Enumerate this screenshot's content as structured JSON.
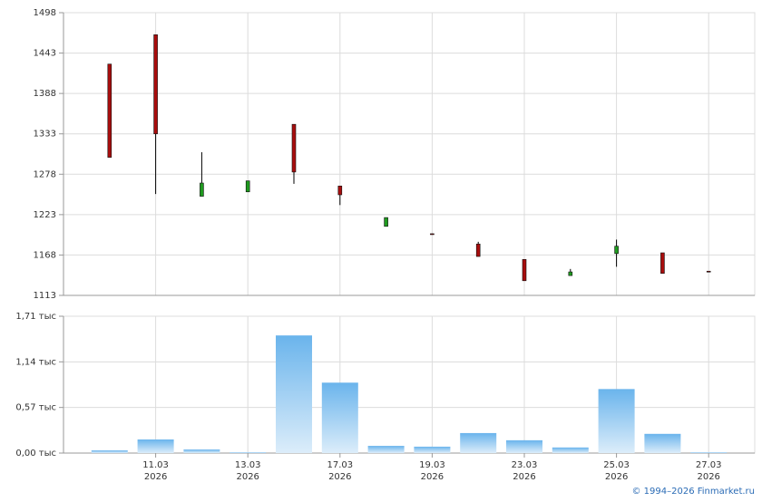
{
  "chart_data": [
    {
      "type": "candlestick",
      "categories": [
        null,
        "11.03",
        null,
        "13.03",
        null,
        "17.03",
        null,
        "19.03",
        null,
        "23.03",
        null,
        "25.03",
        null,
        "27.03"
      ],
      "open": [
        1428,
        1468,
        1248,
        1254,
        1346,
        1262,
        1207,
        1197,
        1183,
        1162,
        1140,
        1170,
        1171,
        1146
      ],
      "high": [
        1428,
        1468,
        1308,
        1269,
        1346,
        1262,
        1219,
        1197,
        1186,
        1162,
        1149,
        1189,
        1171,
        1146
      ],
      "low": [
        1301,
        1251,
        1248,
        1254,
        1265,
        1236,
        1207,
        1196,
        1166,
        1133,
        1140,
        1152,
        1143,
        1145
      ],
      "close": [
        1301,
        1333,
        1266,
        1269,
        1281,
        1250,
        1219,
        1196,
        1166,
        1133,
        1145,
        1180,
        1143,
        1145
      ],
      "up_color": "#1f9a1f",
      "down_color": "#a80d0d",
      "ylim": [
        1113,
        1498
      ],
      "yticks": [
        1113,
        1168,
        1223,
        1278,
        1333,
        1388,
        1443,
        1498
      ],
      "grid": true
    },
    {
      "type": "bar",
      "categories": [
        null,
        "11.03",
        null,
        "13.03",
        null,
        "17.03",
        null,
        "19.03",
        null,
        "23.03",
        null,
        "25.03",
        null,
        "27.03"
      ],
      "x_sublabel": "2026",
      "values": [
        0.034,
        0.17,
        0.045,
        0.01,
        1.47,
        0.88,
        0.09,
        0.08,
        0.25,
        0.16,
        0.07,
        0.8,
        0.24,
        0.01
      ],
      "color": "#6ab4ec",
      "ylim": [
        0,
        1.71
      ],
      "yticks": [
        {
          "value": 0,
          "label": "0,00 тыс"
        },
        {
          "value": 0.57,
          "label": "0,57 тыс"
        },
        {
          "value": 1.14,
          "label": "1,14 тыс"
        },
        {
          "value": 1.71,
          "label": "1,71 тыс"
        }
      ],
      "grid": true
    }
  ],
  "footer": "© 1994–2026 Finmarket.ru"
}
